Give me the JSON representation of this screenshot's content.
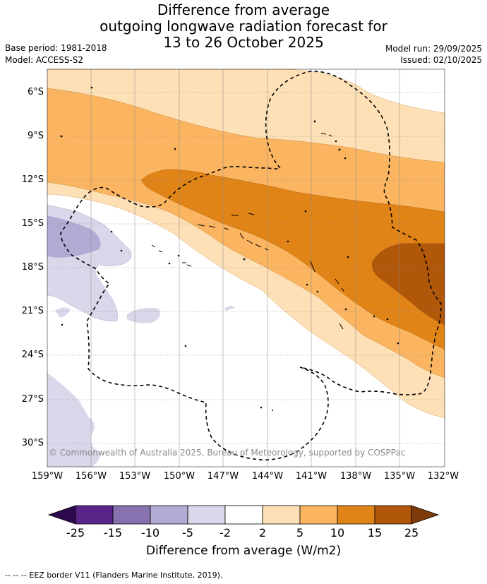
{
  "title": {
    "line1": "Difference from average",
    "line2": "outgoing longwave radiation forecast for",
    "line3": "13 to 26 October 2025"
  },
  "meta": {
    "base_period": "Base period: 1981-2018",
    "model": "Model: ACCESS-S2",
    "model_run": "Model run: 29/09/2025",
    "issued": "Issued: 02/10/2025"
  },
  "axes": {
    "lat_labels": [
      "6°S",
      "9°S",
      "12°S",
      "15°S",
      "18°S",
      "21°S",
      "24°S",
      "27°S",
      "30°S"
    ],
    "lon_labels": [
      "159°W",
      "156°W",
      "153°W",
      "150°W",
      "147°W",
      "144°W",
      "141°W",
      "138°W",
      "135°W",
      "132°W"
    ]
  },
  "colorbar": {
    "ticks": [
      "-25",
      "-15",
      "-10",
      "-5",
      "-2",
      "2",
      "5",
      "10",
      "15",
      "25"
    ],
    "title": "Difference from average (W/m2)",
    "colors": {
      "below": "#2d0a4d",
      "n25_15": "#5a2589",
      "n15_10": "#8572ae",
      "n10_5": "#b3aad4",
      "n5_2": "#d8d8ea",
      "n2_2": "#ffffff",
      "p2_5": "#fde0b5",
      "p5_10": "#fbb561",
      "p10_15": "#e08417",
      "p15_25": "#b1570a",
      "above": "#7e3a08"
    }
  },
  "copyright": "© Commonwealth of Australia 2025, Bureau of Meteorology, supported by COSPPac",
  "footer": "--  --  -- EEZ border V11 (Flanders Marine Institute, 2019)."
}
